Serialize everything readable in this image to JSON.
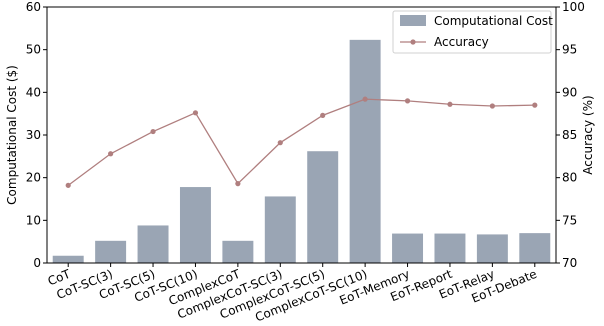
{
  "chart_data": {
    "type": "bar",
    "categories": [
      "CoT",
      "CoT-SC(3)",
      "CoT-SC(5)",
      "CoT-SC(10)",
      "ComplexCoT",
      "ComplexCoT-SC(3)",
      "ComplexCoT-SC(5)",
      "ComplexCoT-SC(10)",
      "EoT-Memory",
      "EoT-Report",
      "EoT-Relay",
      "EoT-Debate"
    ],
    "series": [
      {
        "name": "Computational Cost",
        "type": "bar",
        "axis": "left",
        "color": "#9aa5b4",
        "values": [
          1.7,
          5.2,
          8.8,
          17.8,
          5.2,
          15.6,
          26.2,
          52.3,
          6.9,
          6.9,
          6.7,
          7.0
        ]
      },
      {
        "name": "Accuracy",
        "type": "line",
        "axis": "right",
        "color": "#b07f7f",
        "values": [
          79.1,
          82.8,
          85.4,
          87.6,
          79.3,
          84.1,
          87.3,
          89.2,
          89.0,
          88.6,
          88.4,
          88.5
        ]
      }
    ],
    "ylabel": "Computational Cost ($)",
    "y2label": "Accuracy (%)",
    "ylim": [
      0,
      60
    ],
    "y2lim": [
      70,
      100
    ],
    "yticks": [
      "0",
      "10",
      "20",
      "30",
      "40",
      "50",
      "60"
    ],
    "y2ticks": [
      "70",
      "75",
      "80",
      "85",
      "90",
      "95",
      "100"
    ],
    "legend_position": "top-right",
    "grid": false
  }
}
